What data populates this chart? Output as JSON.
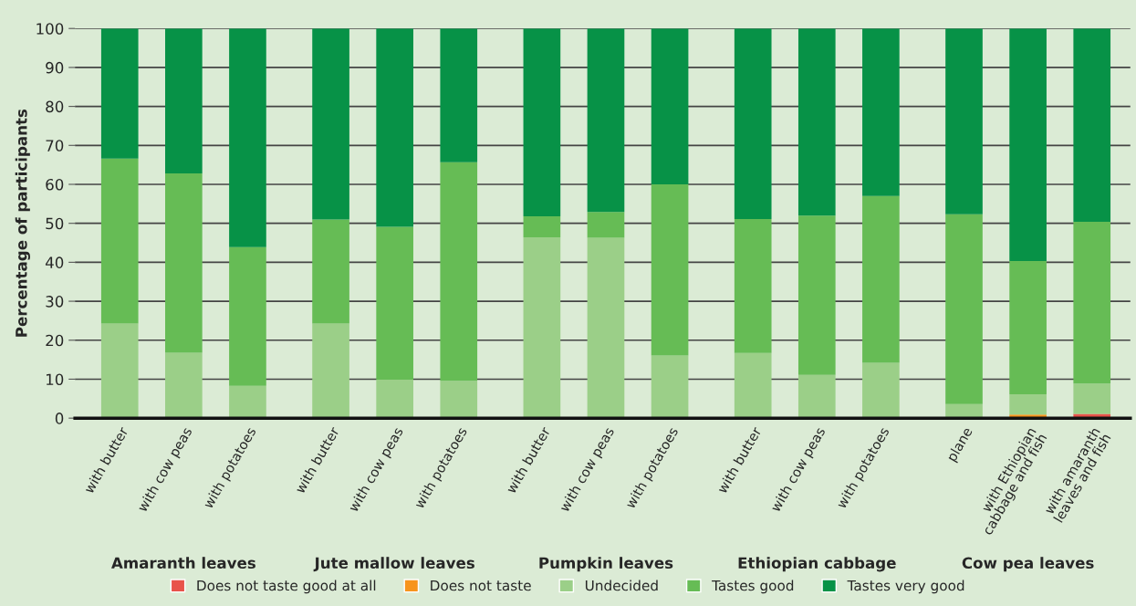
{
  "chart_data": {
    "type": "bar",
    "stacked": true,
    "ylabel": "Percentage of participants",
    "categories": [
      "with butter",
      "with cow peas",
      "with potatoes",
      "with butter",
      "with cow peas",
      "with potatoes",
      "with butter",
      "with cow peas",
      "with potatoes",
      "with butter",
      "with cow peas",
      "with potatoes",
      "plane",
      "with Ethiopian\ncabbage and fish",
      "with amaranth\nleaves and fish"
    ],
    "annotations": [
      "Amaranth leaves",
      "Jute mallow leaves",
      "Pumpkin leaves",
      "Ethiopian cabbage",
      "Cow pea leaves"
    ],
    "series": [
      {
        "name": "Does not taste good at all",
        "color": "#e8534a",
        "values": [
          0,
          0,
          0,
          0,
          0,
          0,
          0,
          0,
          0,
          0,
          0,
          0,
          0,
          0,
          1.1
        ]
      },
      {
        "name": "Does not taste",
        "color": "#f7941d",
        "values": [
          0,
          0,
          0,
          0,
          0,
          0,
          0,
          0,
          0,
          0,
          0,
          0,
          0,
          0.9,
          0
        ]
      },
      {
        "name": "Undecided",
        "color": "#9bcf88",
        "values": [
          24.3,
          16.8,
          8.3,
          24.3,
          9.9,
          9.6,
          46.4,
          46.3,
          16.1,
          16.7,
          11.1,
          14.2,
          3.6,
          5.2,
          7.8
        ]
      },
      {
        "name": "Tastes good",
        "color": "#66bc55",
        "values": [
          42.3,
          46.0,
          35.6,
          26.7,
          39.2,
          56.1,
          5.4,
          6.6,
          43.9,
          34.4,
          40.9,
          42.8,
          48.7,
          34.2,
          41.5
        ]
      },
      {
        "name": "Tastes very good",
        "color": "#079247",
        "values": [
          33.4,
          37.2,
          56.1,
          49.0,
          50.9,
          34.3,
          48.2,
          47.1,
          40.0,
          48.9,
          48.0,
          43.0,
          47.7,
          59.7,
          49.6
        ]
      }
    ],
    "ylim": [
      0,
      100
    ],
    "yticks": [
      0,
      10,
      20,
      30,
      40,
      50,
      60,
      70,
      80,
      90,
      100
    ],
    "grid": "y",
    "legend": "bottom"
  }
}
